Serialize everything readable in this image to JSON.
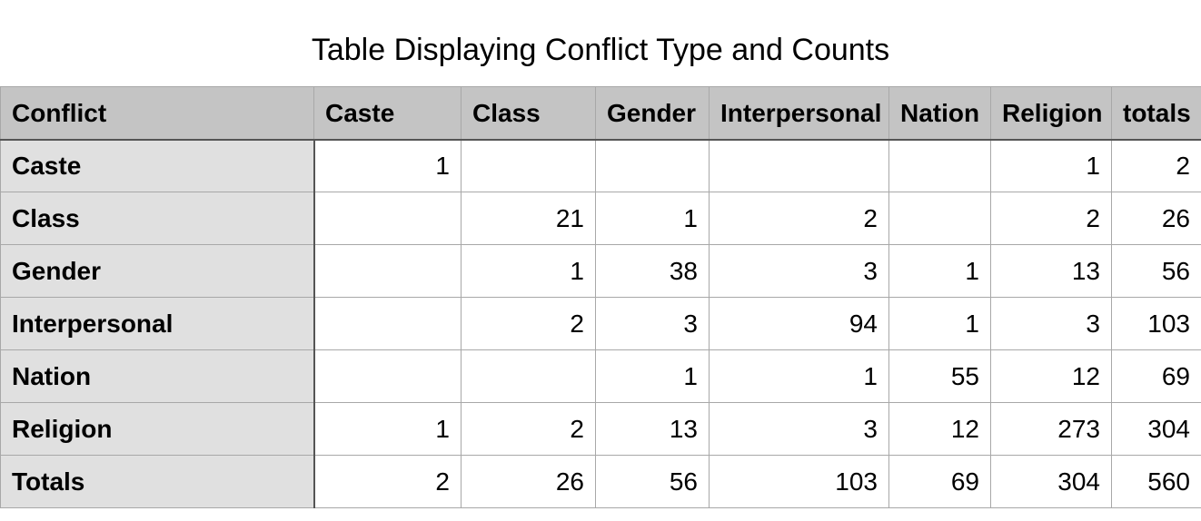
{
  "chart_data": {
    "type": "table",
    "title": "Table Displaying Conflict Type and Counts",
    "corner_label": "Conflict",
    "columns": [
      "Caste",
      "Class",
      "Gender",
      "Interpersonal",
      "Nation",
      "Religion",
      "totals"
    ],
    "rows": [
      {
        "label": "Caste",
        "values": [
          "1",
          "",
          "",
          "",
          "",
          "1",
          "2"
        ]
      },
      {
        "label": "Class",
        "values": [
          "",
          "21",
          "1",
          "2",
          "",
          "2",
          "26"
        ]
      },
      {
        "label": "Gender",
        "values": [
          "",
          "1",
          "38",
          "3",
          "1",
          "13",
          "56"
        ]
      },
      {
        "label": "Interpersonal",
        "values": [
          "",
          "2",
          "3",
          "94",
          "1",
          "3",
          "103"
        ]
      },
      {
        "label": "Nation",
        "values": [
          "",
          "",
          "1",
          "1",
          "55",
          "12",
          "69"
        ]
      },
      {
        "label": "Religion",
        "values": [
          "1",
          "2",
          "13",
          "3",
          "12",
          "273",
          "304"
        ]
      },
      {
        "label": "Totals",
        "values": [
          "2",
          "26",
          "56",
          "103",
          "69",
          "304",
          "560"
        ]
      }
    ]
  }
}
